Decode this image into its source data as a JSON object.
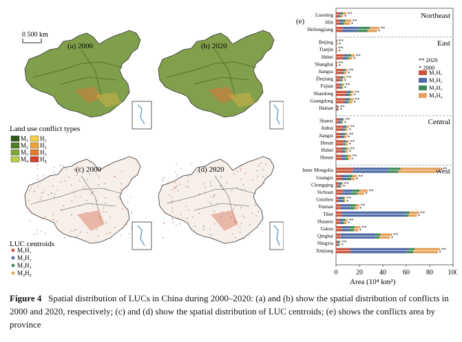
{
  "scale_label": "0 500 km",
  "maps": {
    "a": "(a) 2000",
    "b": "(b) 2020",
    "c": "(c) 2000",
    "d": "(d) 2020"
  },
  "conflict_legend": {
    "title": "Land use conflict types",
    "items": [
      {
        "label": "M",
        "sub": "1",
        "color": "#2e5a1c"
      },
      {
        "label": "M",
        "sub": "2",
        "color": "#4e7d2a"
      },
      {
        "label": "M",
        "sub": "3",
        "color": "#7ea83a"
      },
      {
        "label": "M",
        "sub": "4",
        "color": "#b9cf4a"
      },
      {
        "label": "H",
        "sub": "1",
        "color": "#f3d24a"
      },
      {
        "label": "H",
        "sub": "2",
        "color": "#f1a63a"
      },
      {
        "label": "H",
        "sub": "3",
        "color": "#ea7a2c"
      },
      {
        "label": "H",
        "sub": "4",
        "color": "#d9402a"
      }
    ]
  },
  "centroid_legend": {
    "title": "LUC centroids",
    "items": [
      {
        "label": "M₁H₁",
        "color": "#c8553d"
      },
      {
        "label": "M₂H₂",
        "color": "#4f6aa6"
      },
      {
        "label": "M₃H₃",
        "color": "#3f8a5a"
      },
      {
        "label": "M₄H₄",
        "color": "#e5a05a"
      }
    ]
  },
  "colors": {
    "M1H1": "#c8553d",
    "M2H2": "#4f6aa6",
    "M3H3": "#3f8a5a",
    "M4H4": "#e5a05a"
  },
  "chart_data": {
    "type": "bar",
    "panel_label": "(e)",
    "orientation": "horizontal",
    "stacked": true,
    "xlabel": "Area (10⁴ km²)",
    "xlim": [
      0,
      100
    ],
    "xticks": [
      0,
      20,
      40,
      60,
      80,
      100
    ],
    "legend": {
      "marker_2020": "** 2020",
      "marker_2000": "* 2000",
      "series": [
        "M₁H₁",
        "M₂H₂",
        "M₃H₃",
        "M₄H₄"
      ]
    },
    "series_names": [
      "M1H1",
      "M2H2",
      "M3H3",
      "M4H4"
    ],
    "regions": [
      {
        "name": "Northeast",
        "provinces": [
          {
            "name": "Liaoning",
            "y2020": [
              3,
              1,
              2,
              3
            ],
            "y2000": [
              2,
              1,
              1,
              2
            ]
          },
          {
            "name": "Jilin",
            "y2020": [
              3,
              2,
              3,
              5
            ],
            "y2000": [
              3,
              2,
              2,
              5
            ]
          },
          {
            "name": "Heilongjiang",
            "y2020": [
              6,
              13,
              10,
              8
            ],
            "y2000": [
              5,
              13,
              9,
              8
            ]
          }
        ]
      },
      {
        "name": "East",
        "provinces": [
          {
            "name": "Beijing",
            "y2020": [
              0.5,
              0.3,
              0.3,
              0.3
            ],
            "y2000": [
              0.5,
              0.3,
              0.2,
              0.3
            ]
          },
          {
            "name": "Tianjin",
            "y2020": [
              0.5,
              0.2,
              0.1,
              0.2
            ],
            "y2000": [
              0.5,
              0.2,
              0.1,
              0.2
            ]
          },
          {
            "name": "Hebei",
            "y2020": [
              7,
              3,
              3,
              3
            ],
            "y2000": [
              6,
              3,
              2,
              3
            ]
          },
          {
            "name": "Shanghai",
            "y2020": [
              0.8,
              0.2,
              0.1,
              0.1
            ],
            "y2000": [
              0.7,
              0.2,
              0.1,
              0.1
            ]
          },
          {
            "name": "Jiangsu",
            "y2020": [
              6,
              1,
              1,
              2
            ],
            "y2000": [
              5,
              1,
              1,
              2
            ]
          },
          {
            "name": "Zhejiang",
            "y2020": [
              4,
              1,
              1,
              2
            ],
            "y2000": [
              3,
              1,
              1,
              1
            ]
          },
          {
            "name": "Fujian",
            "y2020": [
              3,
              1,
              1,
              2
            ],
            "y2000": [
              3,
              1,
              1,
              1
            ]
          },
          {
            "name": "Shandong",
            "y2020": [
              9,
              2,
              2,
              2
            ],
            "y2000": [
              8,
              2,
              2,
              2
            ]
          },
          {
            "name": "Guangdong",
            "y2020": [
              8,
              2,
              2,
              3
            ],
            "y2000": [
              7,
              2,
              2,
              3
            ]
          },
          {
            "name": "Hainan",
            "y2020": [
              1,
              0.5,
              0.5,
              0.5
            ],
            "y2000": [
              1,
              0.5,
              0.4,
              0.5
            ]
          }
        ]
      },
      {
        "name": "Central",
        "provinces": [
          {
            "name": "Shanxi",
            "y2020": [
              3,
              2,
              1,
              1
            ],
            "y2000": [
              2,
              2,
              1,
              1
            ]
          },
          {
            "name": "Anhui",
            "y2020": [
              6,
              2,
              1,
              2
            ],
            "y2000": [
              5,
              2,
              1,
              2
            ]
          },
          {
            "name": "Jiangxi",
            "y2020": [
              4,
              2,
              2,
              2
            ],
            "y2000": [
              4,
              2,
              1,
              2
            ]
          },
          {
            "name": "Henan",
            "y2020": [
              7,
              1,
              1,
              2
            ],
            "y2000": [
              6,
              1,
              1,
              2
            ]
          },
          {
            "name": "Hubei",
            "y2020": [
              5,
              2,
              2,
              2
            ],
            "y2000": [
              5,
              2,
              1,
              2
            ]
          },
          {
            "name": "Hunan",
            "y2020": [
              5,
              3,
              2,
              3
            ],
            "y2000": [
              5,
              3,
              2,
              2
            ]
          }
        ]
      },
      {
        "name": "West",
        "provinces": [
          {
            "name": "Inner Mongolia",
            "y2020": [
              15,
              30,
              10,
              35
            ],
            "y2000": [
              14,
              30,
              9,
              33
            ]
          },
          {
            "name": "Guangxi",
            "y2020": [
              5,
              5,
              4,
              4
            ],
            "y2000": [
              5,
              4,
              4,
              3
            ]
          },
          {
            "name": "Chongqing",
            "y2020": [
              2,
              2,
              1,
              1
            ],
            "y2000": [
              2,
              1,
              1,
              1
            ]
          },
          {
            "name": "Sichuan",
            "y2020": [
              6,
              8,
              6,
              7
            ],
            "y2000": [
              5,
              8,
              5,
              6
            ]
          },
          {
            "name": "Guizhou",
            "y2020": [
              2,
              3,
              2,
              1
            ],
            "y2000": [
              2,
              3,
              2,
              1
            ]
          },
          {
            "name": "Yunnan",
            "y2020": [
              4,
              8,
              5,
              3
            ],
            "y2000": [
              4,
              8,
              4,
              3
            ]
          },
          {
            "name": "Tibet",
            "y2020": [
              5,
              55,
              3,
              8
            ],
            "y2000": [
              5,
              54,
              3,
              7
            ]
          },
          {
            "name": "Shaanxi",
            "y2020": [
              3,
              3,
              2,
              2
            ],
            "y2000": [
              3,
              2,
              2,
              2
            ]
          },
          {
            "name": "Gansu",
            "y2020": [
              5,
              7,
              4,
              5
            ],
            "y2000": [
              5,
              6,
              4,
              4
            ]
          },
          {
            "name": "Qinghai",
            "y2020": [
              4,
              30,
              4,
              10
            ],
            "y2000": [
              4,
              30,
              3,
              9
            ]
          },
          {
            "name": "Ningxia",
            "y2020": [
              1,
              1,
              1,
              1
            ],
            "y2000": [
              1,
              1,
              0.5,
              1
            ]
          },
          {
            "name": "Xinjiang",
            "y2020": [
              12,
              50,
              5,
              22
            ],
            "y2000": [
              12,
              49,
              5,
              21
            ]
          }
        ]
      }
    ]
  },
  "caption": {
    "label": "Figure 4",
    "text": "Spatial distribution of LUCs in China during 2000–2020: (a) and (b) show the spatial distribution of conflicts in 2000 and 2020, respectively; (c) and (d) show the spatial distribution of LUC centroids; (e) shows the conflicts area by province"
  }
}
